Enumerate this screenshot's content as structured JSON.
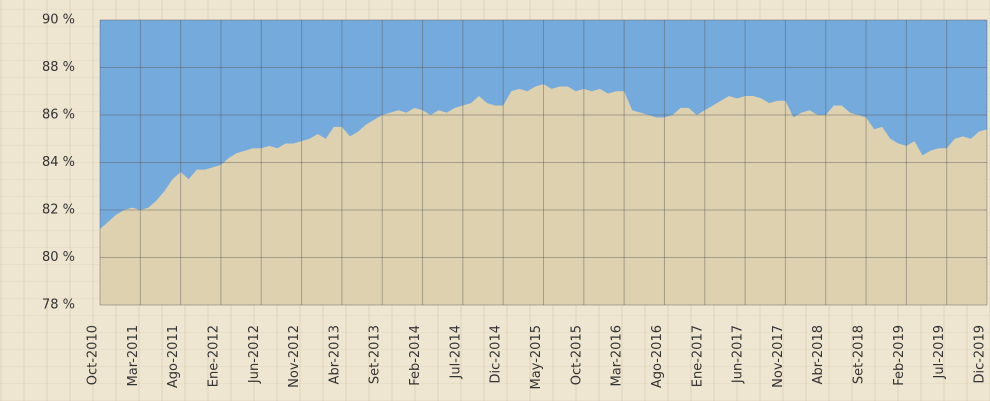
{
  "chart_data": {
    "type": "area",
    "categories": [
      "Oct-2010",
      null,
      null,
      null,
      null,
      "Mar-2011",
      null,
      null,
      null,
      null,
      "Ago-2011",
      null,
      null,
      null,
      null,
      "Ene-2012",
      null,
      null,
      null,
      null,
      "Jun-2012",
      null,
      null,
      null,
      null,
      "Nov-2012",
      null,
      null,
      null,
      null,
      "Abr-2013",
      null,
      null,
      null,
      null,
      "Set-2013",
      null,
      null,
      null,
      null,
      "Feb-2014",
      null,
      null,
      null,
      null,
      "Jul-2014",
      null,
      null,
      null,
      null,
      "Dic-2014",
      null,
      null,
      null,
      null,
      "May-2015",
      null,
      null,
      null,
      null,
      "Oct-2015",
      null,
      null,
      null,
      null,
      "Mar-2016",
      null,
      null,
      null,
      null,
      "Ago-2016",
      null,
      null,
      null,
      null,
      "Ene-2017",
      null,
      null,
      null,
      null,
      "Jun-2017",
      null,
      null,
      null,
      null,
      "Nov-2017",
      null,
      null,
      null,
      null,
      "Abr-2018",
      null,
      null,
      null,
      null,
      "Set-2018",
      null,
      null,
      null,
      null,
      "Feb-2019",
      null,
      null,
      null,
      null,
      "Jul-2019",
      null,
      null,
      null,
      null,
      "Dic-2019"
    ],
    "values": [
      81.2,
      81.5,
      81.8,
      82.0,
      82.1,
      82.0,
      82.1,
      82.4,
      82.8,
      83.3,
      83.6,
      83.3,
      83.7,
      83.7,
      83.8,
      83.9,
      84.2,
      84.4,
      84.5,
      84.6,
      84.6,
      84.7,
      84.6,
      84.8,
      84.8,
      84.9,
      85.0,
      85.2,
      85.0,
      85.5,
      85.5,
      85.1,
      85.3,
      85.6,
      85.8,
      86.0,
      86.1,
      86.2,
      86.1,
      86.3,
      86.2,
      86.0,
      86.2,
      86.1,
      86.3,
      86.4,
      86.5,
      86.8,
      86.5,
      86.4,
      86.4,
      87.0,
      87.1,
      87.0,
      87.2,
      87.3,
      87.1,
      87.2,
      87.2,
      87.0,
      87.1,
      87.0,
      87.1,
      86.9,
      87.0,
      87.0,
      86.2,
      86.1,
      86.0,
      85.9,
      85.9,
      86.0,
      86.3,
      86.3,
      86.0,
      86.2,
      86.4,
      86.6,
      86.8,
      86.7,
      86.8,
      86.8,
      86.7,
      86.5,
      86.6,
      86.6,
      85.9,
      86.1,
      86.2,
      86.0,
      86.0,
      86.4,
      86.4,
      86.1,
      86.0,
      85.9,
      85.4,
      85.5,
      85.0,
      84.8,
      84.7,
      84.9,
      84.3,
      84.5,
      84.6,
      84.6,
      85.0,
      85.1,
      85.0,
      85.3,
      85.4
    ],
    "color": "#ddd1b0",
    "plot_background": "#74aadc",
    "ylim": [
      78,
      90
    ],
    "yticks": [
      {
        "value": 78,
        "label": "78 %"
      },
      {
        "value": 80,
        "label": "80 %"
      },
      {
        "value": 82,
        "label": "82 %"
      },
      {
        "value": 84,
        "label": "84 %"
      },
      {
        "value": 86,
        "label": "86 %"
      },
      {
        "value": 88,
        "label": "88 %"
      },
      {
        "value": 90,
        "label": "90 %"
      }
    ],
    "grid": true
  }
}
